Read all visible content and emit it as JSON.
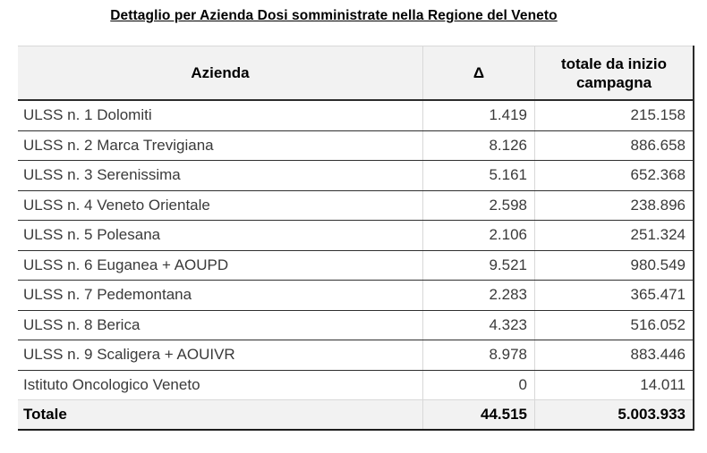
{
  "title": "Dettaglio per Azienda Dosi somministrate nella Regione del Veneto",
  "table": {
    "columns": [
      "Azienda",
      "Δ",
      "totale da inizio campagna"
    ],
    "rows": [
      [
        "ULSS n. 1 Dolomiti",
        "1.419",
        "215.158"
      ],
      [
        "ULSS n. 2 Marca Trevigiana",
        "8.126",
        "886.658"
      ],
      [
        "ULSS n. 3 Serenissima",
        "5.161",
        "652.368"
      ],
      [
        "ULSS n. 4 Veneto Orientale",
        "2.598",
        "238.896"
      ],
      [
        "ULSS n. 5 Polesana",
        "2.106",
        "251.324"
      ],
      [
        "ULSS n. 6 Euganea + AOUPD",
        "9.521",
        "980.549"
      ],
      [
        "ULSS n. 7 Pedemontana",
        "2.283",
        "365.471"
      ],
      [
        "ULSS n. 8 Berica",
        "4.323",
        "516.052"
      ],
      [
        "ULSS n. 9 Scaligera + AOUIVR",
        "8.978",
        "883.446"
      ],
      [
        "Istituto Oncologico Veneto",
        "0",
        "14.011"
      ]
    ],
    "total": [
      "Totale",
      "44.515",
      "5.003.933"
    ]
  },
  "colors": {
    "header_background": "#f2f2f2",
    "total_row_background": "#f2f2f2",
    "row_text": "#3a3a3a",
    "emphasis_text": "#000000",
    "dark_border": "#2b2b2b",
    "light_border": "#d8d8d8"
  },
  "chart_data": {
    "type": "table",
    "title": "Dettaglio per Azienda Dosi somministrate nella Regione del Veneto",
    "columns": [
      "Azienda",
      "Δ",
      "totale da inizio campagna"
    ],
    "rows": [
      {
        "azienda": "ULSS n. 1 Dolomiti",
        "delta": 1419,
        "totale_da_inizio_campagna": 215158
      },
      {
        "azienda": "ULSS n. 2 Marca Trevigiana",
        "delta": 8126,
        "totale_da_inizio_campagna": 886658
      },
      {
        "azienda": "ULSS n. 3 Serenissima",
        "delta": 5161,
        "totale_da_inizio_campagna": 652368
      },
      {
        "azienda": "ULSS n. 4 Veneto Orientale",
        "delta": 2598,
        "totale_da_inizio_campagna": 238896
      },
      {
        "azienda": "ULSS n. 5 Polesana",
        "delta": 2106,
        "totale_da_inizio_campagna": 251324
      },
      {
        "azienda": "ULSS n. 6 Euganea + AOUPD",
        "delta": 9521,
        "totale_da_inizio_campagna": 980549
      },
      {
        "azienda": "ULSS n. 7 Pedemontana",
        "delta": 2283,
        "totale_da_inizio_campagna": 365471
      },
      {
        "azienda": "ULSS n. 8 Berica",
        "delta": 4323,
        "totale_da_inizio_campagna": 516052
      },
      {
        "azienda": "ULSS n. 9 Scaligera + AOUIVR",
        "delta": 8978,
        "totale_da_inizio_campagna": 883446
      },
      {
        "azienda": "Istituto Oncologico Veneto",
        "delta": 0,
        "totale_da_inizio_campagna": 14011
      }
    ],
    "total_row": {
      "azienda": "Totale",
      "delta": 44515,
      "totale_da_inizio_campagna": 5003933
    },
    "number_format": "it-IT thousands separator '.'"
  }
}
